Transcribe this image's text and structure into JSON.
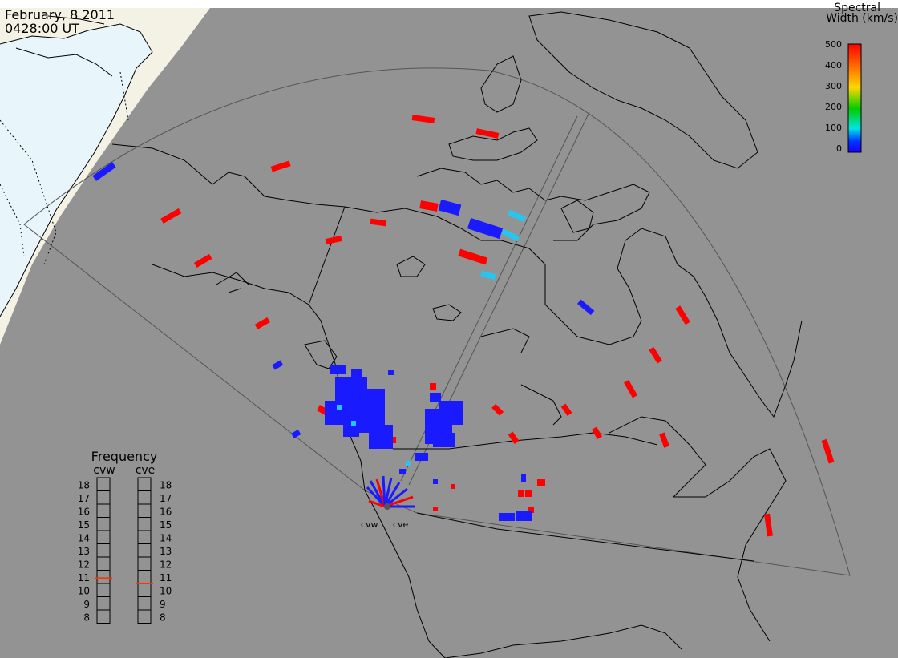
{
  "header": {
    "date": "February, 8 2011",
    "time": "0428:00 UT"
  },
  "colorbar": {
    "title_line1": "Spectral",
    "title_line2": "Width (km/s)",
    "ticks": [
      "500",
      "400",
      "300",
      "200",
      "100",
      "0"
    ],
    "min": 0,
    "max": 500,
    "colors": [
      "#ff0000",
      "#ff6a00",
      "#ffd700",
      "#00cc00",
      "#00e5e5",
      "#0033ff",
      "#1a00ff"
    ]
  },
  "frequency": {
    "title": "Frequency",
    "left_label": "cvw",
    "right_label": "cve",
    "scale_labels": [
      "18",
      "17",
      "16",
      "15",
      "14",
      "13",
      "12",
      "11",
      "10",
      "9",
      "8"
    ],
    "min_mhz": 8,
    "max_mhz": 18,
    "cvw_mhz": 10.9,
    "cve_mhz": 10.5,
    "marker_color": "#ff3300"
  },
  "radars": {
    "cvw_label": "cvw",
    "cve_label": "cve"
  },
  "colors": {
    "background": "#939393",
    "daylight_land": "#f4f2e4",
    "daylight_water": "#e8f6fc",
    "outline": "#000000",
    "fov": "#555555",
    "high_width": "#ff0000",
    "low_width": "#1a1aff",
    "mid_width": "#26c6f0"
  }
}
